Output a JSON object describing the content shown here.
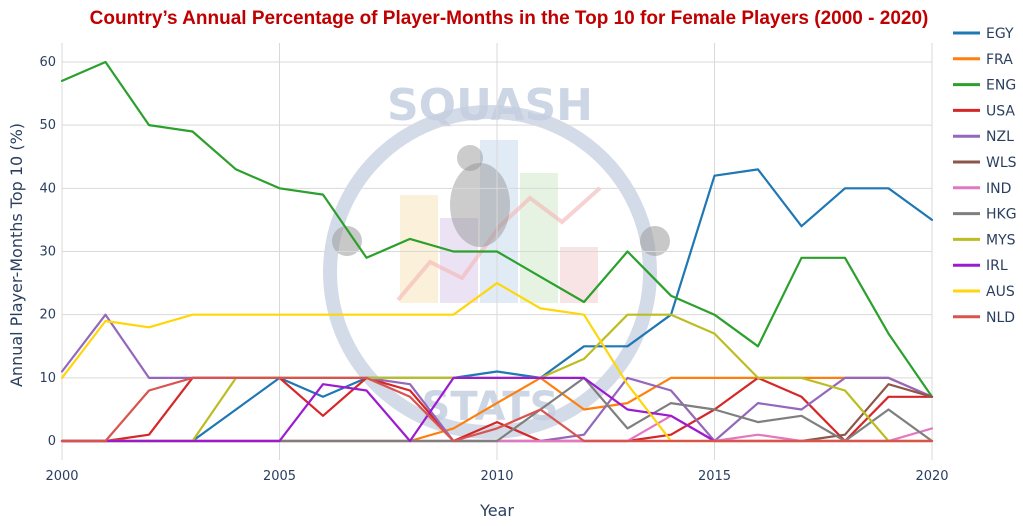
{
  "chart_data": {
    "type": "line",
    "title": "Country’s Annual Percentage of Player-Months in the Top 10 for Female Players (2000 - 2020)",
    "xlabel": "Year",
    "ylabel": "Annual Player-Months Top 10 (%)",
    "xlim": [
      2000,
      2020
    ],
    "ylim": [
      -3,
      63
    ],
    "x_ticks": [
      2000,
      2005,
      2010,
      2015,
      2020
    ],
    "y_ticks": [
      0,
      10,
      20,
      30,
      40,
      50,
      60
    ],
    "grid": true,
    "legend_position": "right",
    "x": [
      2000,
      2001,
      2002,
      2003,
      2004,
      2005,
      2006,
      2007,
      2008,
      2009,
      2010,
      2011,
      2012,
      2013,
      2014,
      2015,
      2016,
      2017,
      2018,
      2019,
      2020
    ],
    "series": [
      {
        "name": "EGY",
        "color": "#1f77b4",
        "values": [
          0,
          0,
          0,
          0,
          5,
          10,
          7,
          10,
          10,
          10,
          11,
          10,
          15,
          15,
          20,
          42,
          43,
          34,
          40,
          40,
          35
        ]
      },
      {
        "name": "FRA",
        "color": "#ff7f0e",
        "values": [
          0,
          0,
          0,
          0,
          0,
          0,
          0,
          0,
          0,
          2,
          6,
          10,
          5,
          6,
          10,
          10,
          10,
          10,
          10,
          10,
          7
        ]
      },
      {
        "name": "ENG",
        "color": "#2ca02c",
        "values": [
          57,
          60,
          50,
          49,
          43,
          40,
          39,
          29,
          32,
          30,
          30,
          26,
          22,
          30,
          23,
          20,
          15,
          29,
          29,
          17,
          7
        ]
      },
      {
        "name": "USA",
        "color": "#d62728",
        "values": [
          0,
          0,
          1,
          10,
          10,
          10,
          4,
          10,
          8,
          0,
          3,
          0,
          0,
          0,
          1,
          5,
          10,
          7,
          0,
          7,
          7
        ]
      },
      {
        "name": "NZL",
        "color": "#9467bd",
        "values": [
          11,
          20,
          10,
          10,
          10,
          10,
          10,
          10,
          9,
          0,
          0,
          0,
          1,
          10,
          8,
          0,
          6,
          5,
          10,
          10,
          7
        ]
      },
      {
        "name": "WLS",
        "color": "#8c564b",
        "values": [
          0,
          0,
          0,
          0,
          0,
          0,
          0,
          0,
          0,
          0,
          0,
          0,
          0,
          0,
          0,
          0,
          0,
          0,
          1,
          9,
          7
        ]
      },
      {
        "name": "IND",
        "color": "#e377c2",
        "values": [
          0,
          0,
          0,
          0,
          0,
          0,
          0,
          0,
          0,
          0,
          0,
          0,
          0,
          0,
          4,
          0,
          1,
          0,
          0,
          0,
          2
        ]
      },
      {
        "name": "HKG",
        "color": "#7f7f7f",
        "values": [
          0,
          0,
          0,
          0,
          0,
          0,
          0,
          0,
          0,
          0,
          0,
          5,
          10,
          2,
          6,
          5,
          3,
          4,
          0,
          5,
          0
        ]
      },
      {
        "name": "MYS",
        "color": "#bcbd22",
        "values": [
          0,
          0,
          0,
          0,
          10,
          10,
          10,
          10,
          10,
          10,
          10,
          10,
          13,
          20,
          20,
          17,
          10,
          10,
          8,
          0,
          0
        ]
      },
      {
        "name": "IRL",
        "color": "#9c1bd0",
        "values": [
          0,
          0,
          0,
          0,
          0,
          0,
          9,
          8,
          0,
          10,
          10,
          10,
          10,
          5,
          4,
          0,
          0,
          0,
          0,
          0,
          0
        ]
      },
      {
        "name": "AUS",
        "color": "#ffd60a",
        "values": [
          10,
          19,
          18,
          20,
          20,
          20,
          20,
          20,
          20,
          20,
          25,
          21,
          20,
          9,
          0,
          0,
          0,
          0,
          0,
          0,
          0
        ]
      },
      {
        "name": "NLD",
        "color": "#d9534f",
        "values": [
          0,
          0,
          8,
          10,
          10,
          10,
          10,
          10,
          7,
          0,
          2,
          5,
          0,
          0,
          0,
          0,
          0,
          0,
          0,
          0,
          0
        ]
      }
    ]
  },
  "colors": {
    "title": "#c00000",
    "grid": "#d9d9d9",
    "watermark": "#c5cfe0"
  },
  "watermark": {
    "top_text": "SQUASH",
    "bottom_text": "STATS"
  }
}
